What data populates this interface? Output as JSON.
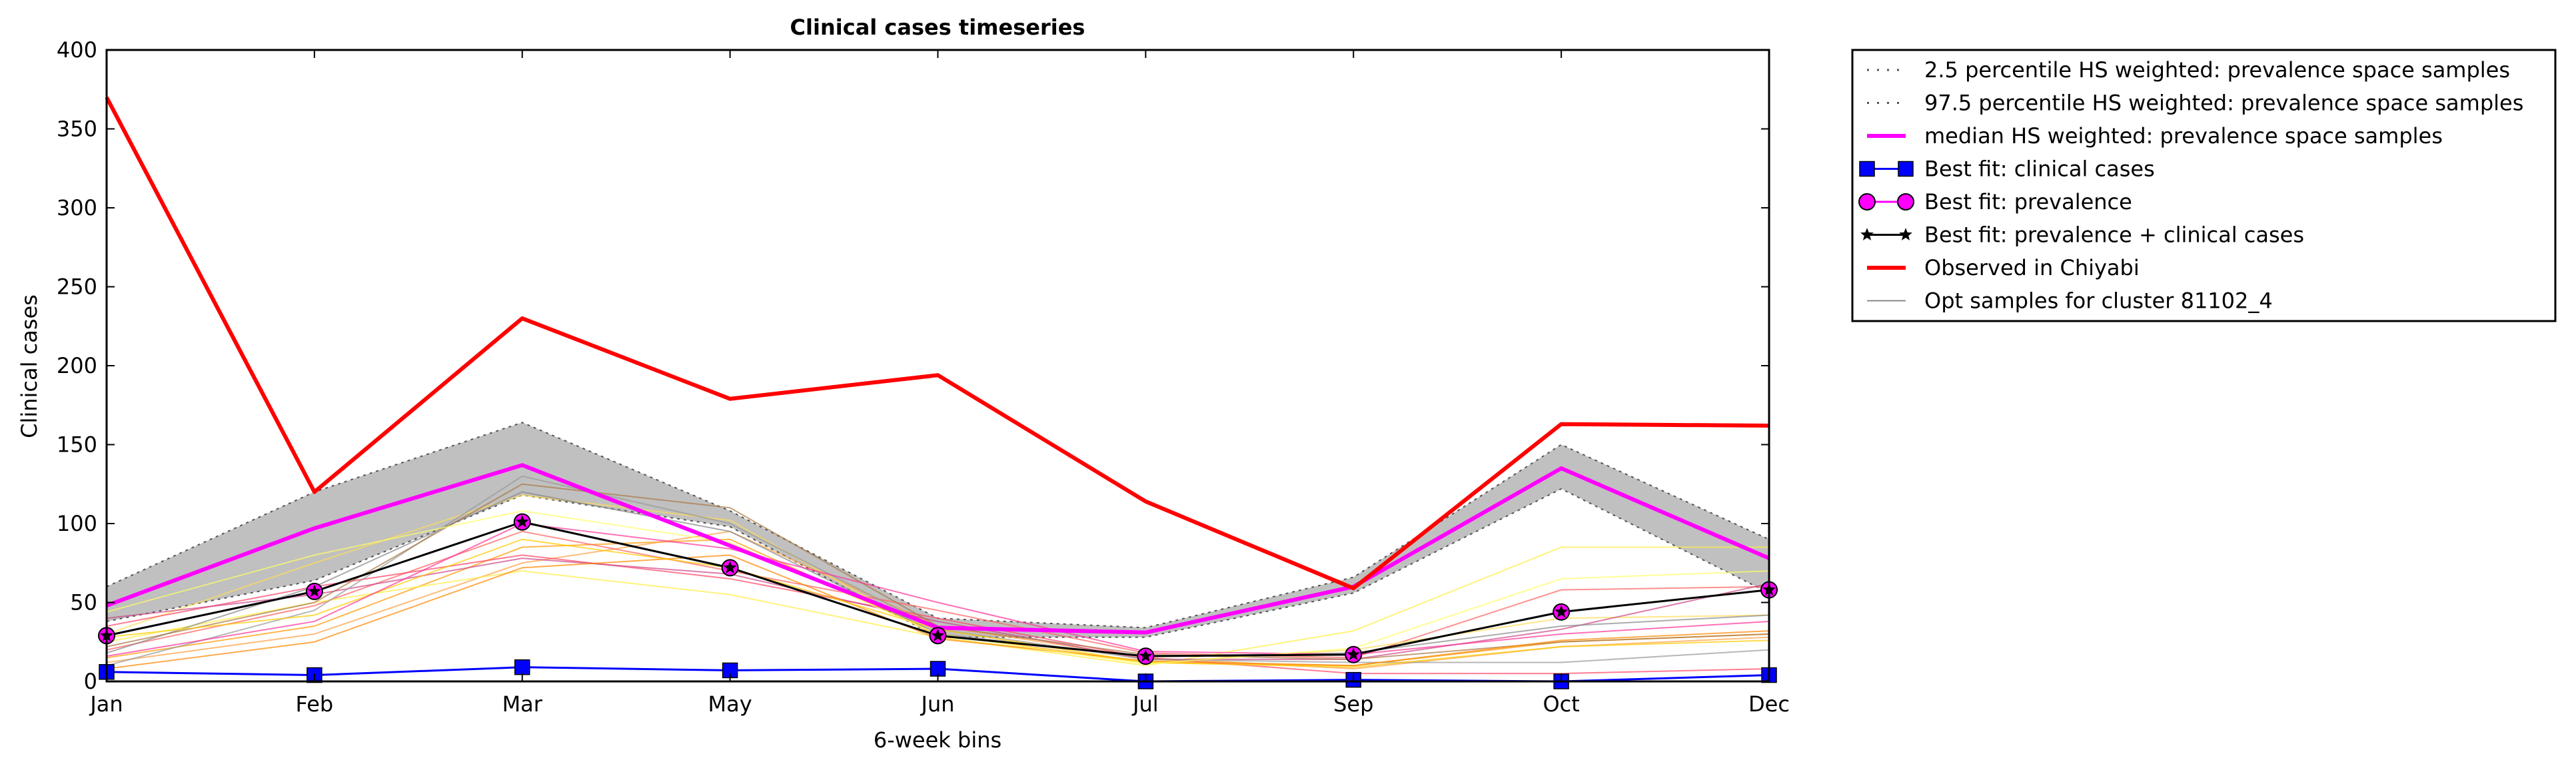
{
  "chart_data": {
    "type": "line",
    "title": "Clinical cases timeseries",
    "xlabel": "6-week bins",
    "ylabel": "Clinical cases",
    "categories": [
      "Jan",
      "Feb",
      "Mar",
      "May",
      "Jun",
      "Jul",
      "Sep",
      "Oct",
      "Dec"
    ],
    "ylim": [
      0,
      400
    ],
    "yticks": [
      0,
      50,
      100,
      150,
      200,
      250,
      300,
      350,
      400
    ],
    "grid": false,
    "legend_position": "outside-top-right",
    "band": {
      "lower_name": "2.5 percentile HS weighted: prevalence space samples",
      "upper_name": "97.5 percentile HS weighted: prevalence space samples",
      "lower": [
        38,
        64,
        118,
        98,
        28,
        28,
        56,
        122,
        56
      ],
      "upper": [
        60,
        120,
        164,
        108,
        40,
        34,
        66,
        150,
        90
      ],
      "fill_color": "#c0c0c0",
      "line_color": "#555555"
    },
    "series": [
      {
        "name": "median HS weighted: prevalence space samples",
        "color": "#ff00ff",
        "marker": "none",
        "width": 6,
        "values": [
          48,
          97,
          137,
          86,
          34,
          31,
          60,
          135,
          78
        ]
      },
      {
        "name": "Best fit: clinical cases",
        "color": "#0000ff",
        "marker": "square",
        "width": 3,
        "values": [
          6,
          4,
          9,
          7,
          8,
          0,
          1,
          0,
          4
        ]
      },
      {
        "name": "Best fit: prevalence",
        "color": "#ff00ff",
        "marker": "circle",
        "width": 3,
        "values": [
          29,
          57,
          101,
          72,
          29,
          16,
          17,
          44,
          58
        ]
      },
      {
        "name": "Best fit: prevalence + clinical cases",
        "color": "#000000",
        "marker": "star",
        "width": 3,
        "values": [
          29,
          57,
          101,
          72,
          29,
          16,
          17,
          44,
          58
        ]
      },
      {
        "name": "Observed in Chiyabi",
        "color": "#ff0000",
        "marker": "none",
        "width": 6,
        "values": [
          370,
          120,
          230,
          179,
          194,
          114,
          59,
          163,
          162
        ]
      }
    ],
    "samples": {
      "name": "Opt samples for cluster 81102_4",
      "legend_color": "#888888",
      "lines": [
        {
          "color": "#ff9900",
          "values": [
            15,
            35,
            85,
            90,
            30,
            12,
            10,
            25,
            30
          ]
        },
        {
          "color": "#ffa040",
          "values": [
            12,
            30,
            75,
            95,
            35,
            15,
            8,
            22,
            28
          ]
        },
        {
          "color": "#ff6060",
          "values": [
            20,
            48,
            95,
            70,
            45,
            18,
            15,
            58,
            60
          ]
        },
        {
          "color": "#ffee44",
          "values": [
            25,
            50,
            70,
            55,
            28,
            10,
            32,
            85,
            85
          ]
        },
        {
          "color": "#ffdd55",
          "values": [
            30,
            75,
            118,
            102,
            28,
            12,
            20,
            40,
            42
          ]
        },
        {
          "color": "#ff4466",
          "values": [
            35,
            60,
            80,
            65,
            40,
            15,
            5,
            5,
            8
          ]
        },
        {
          "color": "#cc4488",
          "values": [
            40,
            55,
            78,
            68,
            38,
            14,
            14,
            33,
            62
          ]
        },
        {
          "color": "#888888",
          "values": [
            18,
            60,
            120,
            95,
            30,
            16,
            18,
            35,
            42
          ]
        },
        {
          "color": "#999999",
          "values": [
            10,
            45,
            130,
            100,
            33,
            14,
            12,
            12,
            20
          ]
        },
        {
          "color": "#aa7744",
          "values": [
            22,
            50,
            125,
            110,
            35,
            17,
            14,
            25,
            30
          ]
        },
        {
          "color": "#ff8800",
          "values": [
            8,
            25,
            72,
            80,
            27,
            13,
            10,
            26,
            32
          ]
        },
        {
          "color": "#ffcc00",
          "values": [
            28,
            42,
            90,
            72,
            33,
            12,
            9,
            22,
            26
          ]
        },
        {
          "color": "#ff3399",
          "values": [
            16,
            38,
            100,
            84,
            50,
            19,
            17,
            30,
            38
          ]
        },
        {
          "color": "#ffff66",
          "values": [
            44,
            80,
            108,
            88,
            30,
            11,
            21,
            65,
            70
          ]
        }
      ]
    }
  }
}
